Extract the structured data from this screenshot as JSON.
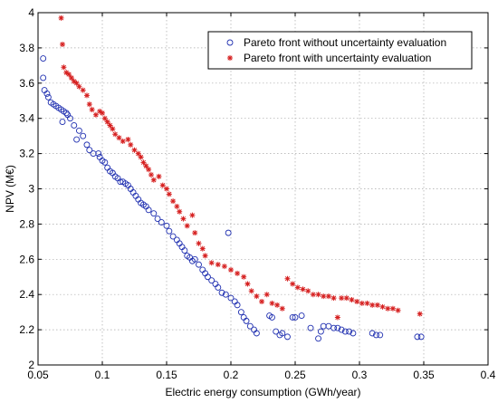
{
  "chart_data": {
    "type": "scatter",
    "xlabel": "Electric energy consumption (GWh/year)",
    "ylabel": "NPV (M€)",
    "xlim": [
      0.05,
      0.4
    ],
    "ylim": [
      2,
      4
    ],
    "xticks": [
      0.05,
      0.1,
      0.15,
      0.2,
      0.25,
      0.3,
      0.35,
      0.4
    ],
    "xtick_labels": [
      "0.05",
      "0.1",
      "0.15",
      "0.2",
      "0.25",
      "0.3",
      "0.35",
      "0.4"
    ],
    "yticks": [
      2,
      2.2,
      2.4,
      2.6,
      2.8,
      3,
      3.2,
      3.4,
      3.6,
      3.8,
      4
    ],
    "ytick_labels": [
      "2",
      "2.2",
      "2.4",
      "2.6",
      "2.8",
      "3",
      "3.2",
      "3.4",
      "3.6",
      "3.8",
      "4"
    ],
    "grid": true,
    "legend_position": "top-right",
    "series": [
      {
        "name": "Pareto front without uncertainty evaluation",
        "marker": "circle",
        "color": "#1f2fb0",
        "points": [
          [
            0.054,
            3.74
          ],
          [
            0.054,
            3.63
          ],
          [
            0.055,
            3.56
          ],
          [
            0.057,
            3.54
          ],
          [
            0.058,
            3.52
          ],
          [
            0.06,
            3.49
          ],
          [
            0.062,
            3.48
          ],
          [
            0.064,
            3.47
          ],
          [
            0.066,
            3.46
          ],
          [
            0.068,
            3.45
          ],
          [
            0.069,
            3.38
          ],
          [
            0.07,
            3.44
          ],
          [
            0.072,
            3.43
          ],
          [
            0.073,
            3.42
          ],
          [
            0.075,
            3.4
          ],
          [
            0.078,
            3.36
          ],
          [
            0.08,
            3.28
          ],
          [
            0.082,
            3.33
          ],
          [
            0.085,
            3.3
          ],
          [
            0.088,
            3.25
          ],
          [
            0.09,
            3.22
          ],
          [
            0.093,
            3.2
          ],
          [
            0.097,
            3.2
          ],
          [
            0.098,
            3.18
          ],
          [
            0.1,
            3.16
          ],
          [
            0.102,
            3.15
          ],
          [
            0.104,
            3.12
          ],
          [
            0.106,
            3.1
          ],
          [
            0.108,
            3.09
          ],
          [
            0.11,
            3.07
          ],
          [
            0.112,
            3.06
          ],
          [
            0.114,
            3.04
          ],
          [
            0.116,
            3.04
          ],
          [
            0.118,
            3.03
          ],
          [
            0.12,
            3.02
          ],
          [
            0.122,
            3.0
          ],
          [
            0.124,
            2.98
          ],
          [
            0.126,
            2.96
          ],
          [
            0.128,
            2.94
          ],
          [
            0.13,
            2.92
          ],
          [
            0.132,
            2.91
          ],
          [
            0.134,
            2.9
          ],
          [
            0.136,
            2.88
          ],
          [
            0.14,
            2.86
          ],
          [
            0.143,
            2.83
          ],
          [
            0.146,
            2.81
          ],
          [
            0.15,
            2.79
          ],
          [
            0.152,
            2.76
          ],
          [
            0.155,
            2.73
          ],
          [
            0.158,
            2.71
          ],
          [
            0.16,
            2.69
          ],
          [
            0.162,
            2.67
          ],
          [
            0.164,
            2.65
          ],
          [
            0.166,
            2.62
          ],
          [
            0.168,
            2.61
          ],
          [
            0.17,
            2.59
          ],
          [
            0.172,
            2.6
          ],
          [
            0.175,
            2.57
          ],
          [
            0.178,
            2.54
          ],
          [
            0.18,
            2.52
          ],
          [
            0.182,
            2.5
          ],
          [
            0.185,
            2.48
          ],
          [
            0.188,
            2.46
          ],
          [
            0.19,
            2.44
          ],
          [
            0.193,
            2.41
          ],
          [
            0.196,
            2.4
          ],
          [
            0.198,
            2.75
          ],
          [
            0.2,
            2.38
          ],
          [
            0.203,
            2.36
          ],
          [
            0.205,
            2.34
          ],
          [
            0.208,
            2.3
          ],
          [
            0.21,
            2.27
          ],
          [
            0.212,
            2.25
          ],
          [
            0.215,
            2.22
          ],
          [
            0.218,
            2.2
          ],
          [
            0.22,
            2.18
          ],
          [
            0.23,
            2.28
          ],
          [
            0.232,
            2.27
          ],
          [
            0.235,
            2.19
          ],
          [
            0.238,
            2.17
          ],
          [
            0.24,
            2.18
          ],
          [
            0.244,
            2.16
          ],
          [
            0.248,
            2.27
          ],
          [
            0.25,
            2.27
          ],
          [
            0.255,
            2.28
          ],
          [
            0.262,
            2.21
          ],
          [
            0.268,
            2.15
          ],
          [
            0.27,
            2.19
          ],
          [
            0.272,
            2.22
          ],
          [
            0.276,
            2.22
          ],
          [
            0.28,
            2.21
          ],
          [
            0.283,
            2.21
          ],
          [
            0.286,
            2.2
          ],
          [
            0.289,
            2.19
          ],
          [
            0.292,
            2.19
          ],
          [
            0.295,
            2.18
          ],
          [
            0.31,
            2.18
          ],
          [
            0.313,
            2.17
          ],
          [
            0.316,
            2.17
          ],
          [
            0.345,
            2.16
          ],
          [
            0.348,
            2.16
          ]
        ]
      },
      {
        "name": "Pareto front with uncertainty evaluation",
        "marker": "star",
        "color": "#d62020",
        "points": [
          [
            0.068,
            3.97
          ],
          [
            0.069,
            3.82
          ],
          [
            0.07,
            3.69
          ],
          [
            0.072,
            3.66
          ],
          [
            0.074,
            3.65
          ],
          [
            0.076,
            3.63
          ],
          [
            0.078,
            3.61
          ],
          [
            0.08,
            3.6
          ],
          [
            0.082,
            3.58
          ],
          [
            0.085,
            3.56
          ],
          [
            0.088,
            3.53
          ],
          [
            0.09,
            3.48
          ],
          [
            0.092,
            3.45
          ],
          [
            0.095,
            3.42
          ],
          [
            0.098,
            3.44
          ],
          [
            0.1,
            3.43
          ],
          [
            0.102,
            3.4
          ],
          [
            0.104,
            3.38
          ],
          [
            0.106,
            3.36
          ],
          [
            0.108,
            3.34
          ],
          [
            0.11,
            3.31
          ],
          [
            0.113,
            3.29
          ],
          [
            0.116,
            3.27
          ],
          [
            0.12,
            3.28
          ],
          [
            0.122,
            3.25
          ],
          [
            0.125,
            3.22
          ],
          [
            0.128,
            3.2
          ],
          [
            0.13,
            3.18
          ],
          [
            0.132,
            3.15
          ],
          [
            0.134,
            3.13
          ],
          [
            0.136,
            3.11
          ],
          [
            0.138,
            3.08
          ],
          [
            0.14,
            3.05
          ],
          [
            0.144,
            3.07
          ],
          [
            0.147,
            3.02
          ],
          [
            0.15,
            3.0
          ],
          [
            0.152,
            2.97
          ],
          [
            0.155,
            2.93
          ],
          [
            0.158,
            2.9
          ],
          [
            0.16,
            2.87
          ],
          [
            0.163,
            2.83
          ],
          [
            0.166,
            2.79
          ],
          [
            0.17,
            2.85
          ],
          [
            0.172,
            2.75
          ],
          [
            0.175,
            2.69
          ],
          [
            0.178,
            2.66
          ],
          [
            0.18,
            2.62
          ],
          [
            0.185,
            2.58
          ],
          [
            0.19,
            2.57
          ],
          [
            0.195,
            2.56
          ],
          [
            0.2,
            2.54
          ],
          [
            0.205,
            2.52
          ],
          [
            0.21,
            2.5
          ],
          [
            0.213,
            2.46
          ],
          [
            0.216,
            2.42
          ],
          [
            0.22,
            2.39
          ],
          [
            0.224,
            2.36
          ],
          [
            0.228,
            2.4
          ],
          [
            0.232,
            2.35
          ],
          [
            0.236,
            2.34
          ],
          [
            0.24,
            2.32
          ],
          [
            0.244,
            2.49
          ],
          [
            0.248,
            2.46
          ],
          [
            0.252,
            2.44
          ],
          [
            0.256,
            2.43
          ],
          [
            0.26,
            2.42
          ],
          [
            0.264,
            2.4
          ],
          [
            0.268,
            2.4
          ],
          [
            0.272,
            2.39
          ],
          [
            0.276,
            2.39
          ],
          [
            0.28,
            2.38
          ],
          [
            0.283,
            2.27
          ],
          [
            0.286,
            2.38
          ],
          [
            0.29,
            2.38
          ],
          [
            0.294,
            2.37
          ],
          [
            0.298,
            2.36
          ],
          [
            0.302,
            2.35
          ],
          [
            0.306,
            2.35
          ],
          [
            0.31,
            2.34
          ],
          [
            0.314,
            2.34
          ],
          [
            0.318,
            2.33
          ],
          [
            0.322,
            2.32
          ],
          [
            0.326,
            2.32
          ],
          [
            0.33,
            2.31
          ],
          [
            0.347,
            2.29
          ]
        ]
      }
    ]
  }
}
